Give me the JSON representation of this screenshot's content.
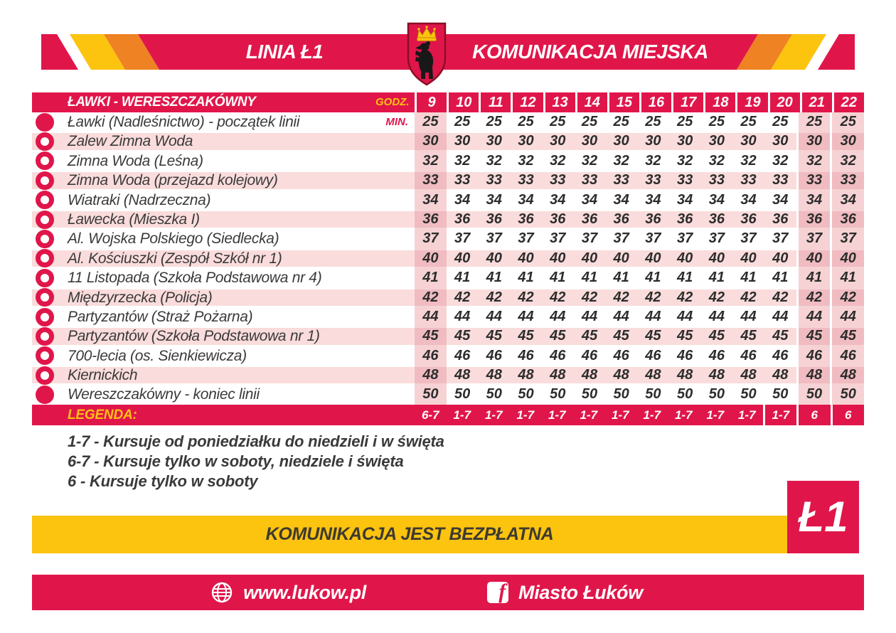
{
  "header": {
    "line_label": "LINIA Ł1",
    "network_label": "KOMUNIKACJA MIEJSKA",
    "crest_icon": "lukow-coat-of-arms-bear-with-crown"
  },
  "colors": {
    "primary_red": "#e0164a",
    "accent_yellow": "#fcc30f",
    "accent_orange": "#ef8222",
    "row_pink": "#fadcdc",
    "highlight_column_pink": "#f6d2d4"
  },
  "timetable": {
    "route_title": "ŁAWKI - WERESZCZAKÓWNY",
    "hours_label": "GODZ.",
    "minutes_label": "MIN.",
    "hours": [
      9,
      10,
      11,
      12,
      13,
      14,
      15,
      16,
      17,
      18,
      19,
      20,
      21,
      22
    ],
    "highlighted_hours": [
      9,
      21,
      22
    ],
    "stops": [
      {
        "name": "Ławki (Nadleśnictwo) - początek linii",
        "minutes": 25
      },
      {
        "name": "Zalew Zimna Woda",
        "minutes": 30
      },
      {
        "name": "Zimna Woda (Leśna)",
        "minutes": 32
      },
      {
        "name": "Zimna Woda (przejazd kolejowy)",
        "minutes": 33
      },
      {
        "name": "Wiatraki (Nadrzeczna)",
        "minutes": 34
      },
      {
        "name": "Ławecka (Mieszka I)",
        "minutes": 36
      },
      {
        "name": "Al. Wojska Polskiego (Siedlecka)",
        "minutes": 37
      },
      {
        "name": "Al. Kościuszki (Zespół Szkół nr 1)",
        "minutes": 40
      },
      {
        "name": "11 Listopada (Szkoła Podstawowa nr 4)",
        "minutes": 41
      },
      {
        "name": "Międzyrzecka (Policja)",
        "minutes": 42
      },
      {
        "name": "Partyzantów (Straż Pożarna)",
        "minutes": 44
      },
      {
        "name": "Partyzantów (Szkoła Podstawowa nr 1)",
        "minutes": 45
      },
      {
        "name": "700-lecia (os. Sienkiewicza)",
        "minutes": 46
      },
      {
        "name": "Kiernickich",
        "minutes": 48
      },
      {
        "name": "Wereszczakówny - koniec linii",
        "minutes": 50
      }
    ],
    "legend_label": "LEGENDA:",
    "legend_per_hour": [
      "6-7",
      "1-7",
      "1-7",
      "1-7",
      "1-7",
      "1-7",
      "1-7",
      "1-7",
      "1-7",
      "1-7",
      "1-7",
      "1-7",
      "6",
      "6"
    ]
  },
  "legend_notes": [
    "1-7 - Kursuje od poniedziałku do niedzieli i w święta",
    "6-7 - Kursuje tylko w soboty, niedziele i święta",
    "6 - Kursuje tylko w soboty"
  ],
  "free_banner": {
    "text": "KOMUNIKACJA JEST BEZPŁATNA"
  },
  "line_badge": {
    "text": "Ł1"
  },
  "footer": {
    "website_icon": "globe-icon",
    "website": "www.lukow.pl",
    "facebook_icon": "facebook-icon",
    "facebook_page": "Miasto Łuków"
  }
}
